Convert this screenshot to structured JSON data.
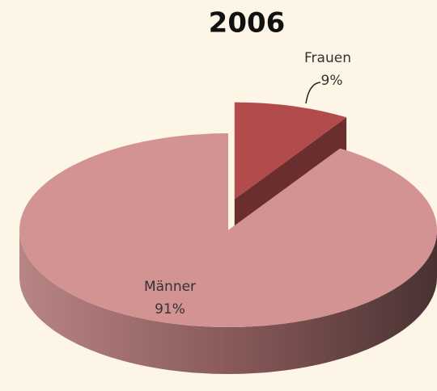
{
  "chart_data": {
    "type": "pie",
    "title": "2006",
    "categories": [
      "Frauen",
      "Männer"
    ],
    "values": [
      9,
      91
    ],
    "value_labels": [
      "9%",
      "91%"
    ],
    "colors": [
      "#b24c4c",
      "#d39393"
    ]
  }
}
